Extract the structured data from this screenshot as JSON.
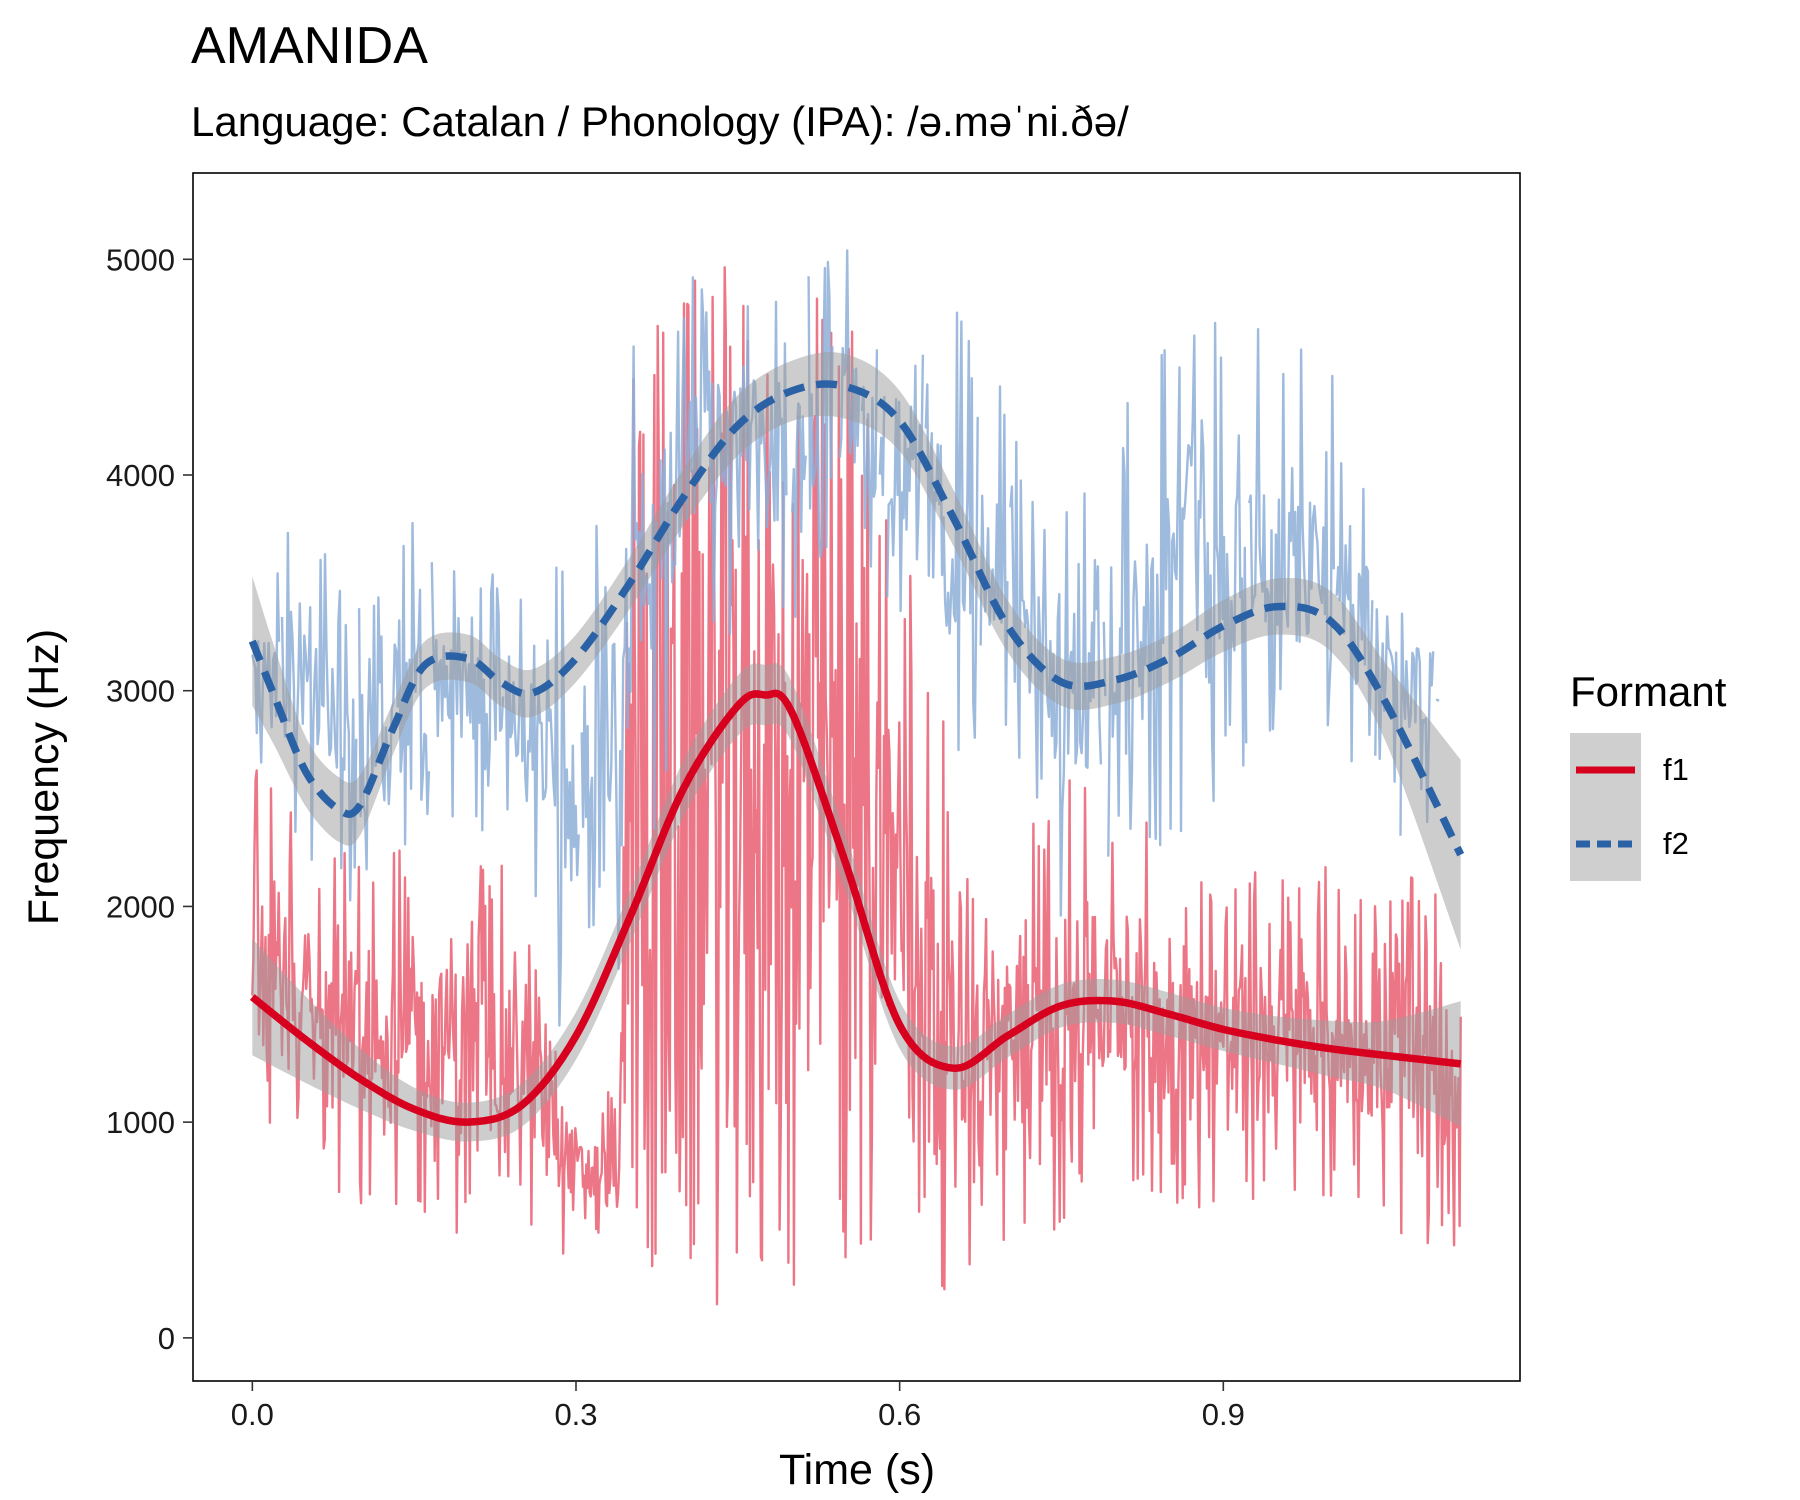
{
  "chart_data": {
    "type": "line",
    "title": "AMANIDA",
    "subtitle": "Language: Catalan / Phonology (IPA): /ə.məˈni.ðə/",
    "xlabel": "Time (s)",
    "ylabel": "Frequency (Hz)",
    "xlim": [
      -0.055,
      1.175
    ],
    "ylim": [
      -200,
      5400
    ],
    "x_ticks": [
      0.0,
      0.3,
      0.6,
      0.9
    ],
    "x_tick_labels": [
      "0.0",
      "0.3",
      "0.6",
      "0.9"
    ],
    "y_ticks": [
      0,
      1000,
      2000,
      3000,
      4000,
      5000
    ],
    "y_tick_labels": [
      "0",
      "1000",
      "2000",
      "3000",
      "4000",
      "5000"
    ],
    "grid": false,
    "legend": {
      "title": "Formant",
      "position": "right"
    },
    "series": [
      {
        "name": "f1",
        "color": "#d7001f",
        "raw_color": "#e8586b",
        "line_style": "solid",
        "smooth": {
          "x": [
            0.0,
            0.05,
            0.1,
            0.15,
            0.2,
            0.25,
            0.3,
            0.35,
            0.4,
            0.45,
            0.475,
            0.5,
            0.55,
            0.6,
            0.65,
            0.7,
            0.75,
            0.8,
            0.85,
            0.9,
            0.95,
            1.0,
            1.05,
            1.12
          ],
          "y": [
            1580,
            1380,
            1200,
            1060,
            1000,
            1080,
            1400,
            1950,
            2550,
            2930,
            2980,
            2900,
            2200,
            1450,
            1250,
            1400,
            1540,
            1560,
            1500,
            1430,
            1380,
            1340,
            1310,
            1270
          ],
          "band_half_width": [
            270,
            200,
            140,
            100,
            90,
            100,
            110,
            120,
            130,
            140,
            140,
            140,
            130,
            110,
            100,
            100,
            100,
            100,
            100,
            100,
            110,
            130,
            160,
            290
          ]
        },
        "raw_envelope": {
          "x": [
            0.0,
            0.1,
            0.2,
            0.25,
            0.3,
            0.34,
            0.35,
            0.4,
            0.45,
            0.5,
            0.55,
            0.6,
            0.65,
            0.7,
            0.75,
            0.8,
            0.9,
            1.0,
            1.12
          ],
          "low": [
            1050,
            550,
            450,
            500,
            350,
            300,
            250,
            100,
            150,
            100,
            200,
            300,
            200,
            350,
            450,
            600,
            600,
            550,
            350
          ],
          "high": [
            2700,
            2250,
            2350,
            2100,
            1200,
            1200,
            4800,
            4900,
            5000,
            4900,
            4900,
            4000,
            2600,
            2300,
            2600,
            2500,
            2200,
            2200,
            2100
          ],
          "density": [
            0.55,
            0.45,
            0.45,
            0.35,
            0.25,
            0.25,
            0.95,
            0.95,
            0.85,
            0.75,
            0.55,
            0.4,
            0.4,
            0.5,
            0.5,
            0.55,
            0.55,
            0.55,
            0.55
          ]
        }
      },
      {
        "name": "f2",
        "color": "#2b62a6",
        "raw_color": "#8dafd8",
        "line_style": "dashed",
        "smooth": {
          "x": [
            0.0,
            0.02,
            0.05,
            0.08,
            0.1,
            0.13,
            0.16,
            0.2,
            0.23,
            0.26,
            0.3,
            0.35,
            0.4,
            0.45,
            0.5,
            0.55,
            0.6,
            0.65,
            0.7,
            0.75,
            0.8,
            0.85,
            0.9,
            0.95,
            1.0,
            1.05,
            1.12
          ],
          "y": [
            3230,
            2980,
            2620,
            2450,
            2470,
            2820,
            3120,
            3150,
            3040,
            2990,
            3150,
            3500,
            3900,
            4230,
            4390,
            4410,
            4250,
            3800,
            3300,
            3040,
            3050,
            3150,
            3300,
            3390,
            3320,
            2950,
            2240
          ],
          "band_half_width": [
            300,
            230,
            160,
            150,
            140,
            120,
            110,
            110,
            110,
            110,
            110,
            120,
            130,
            140,
            140,
            150,
            140,
            130,
            120,
            110,
            110,
            110,
            120,
            130,
            140,
            180,
            440
          ]
        },
        "raw_envelope": {
          "x": [
            0.0,
            0.05,
            0.1,
            0.15,
            0.2,
            0.25,
            0.3,
            0.35,
            0.4,
            0.45,
            0.5,
            0.55,
            0.6,
            0.65,
            0.7,
            0.75,
            0.8,
            0.85,
            0.9,
            0.95,
            1.0,
            1.05,
            1.1
          ],
          "low": [
            2500,
            2200,
            1900,
            2300,
            2400,
            2200,
            1100,
            1800,
            3000,
            3300,
            3300,
            3600,
            3100,
            2600,
            2400,
            1900,
            2100,
            2300,
            2400,
            2500,
            2500,
            2300,
            2300
          ],
          "high": [
            3600,
            3800,
            3400,
            3800,
            3600,
            3500,
            3700,
            4900,
            5100,
            5000,
            5000,
            5100,
            5000,
            4800,
            4500,
            4000,
            4200,
            4900,
            4900,
            4700,
            4500,
            4000,
            3600
          ],
          "density": [
            0.5,
            0.55,
            0.5,
            0.5,
            0.45,
            0.4,
            0.25,
            0.3,
            0.35,
            0.35,
            0.35,
            0.4,
            0.35,
            0.35,
            0.35,
            0.35,
            0.4,
            0.4,
            0.4,
            0.4,
            0.4,
            0.35,
            0.2
          ]
        }
      }
    ]
  }
}
